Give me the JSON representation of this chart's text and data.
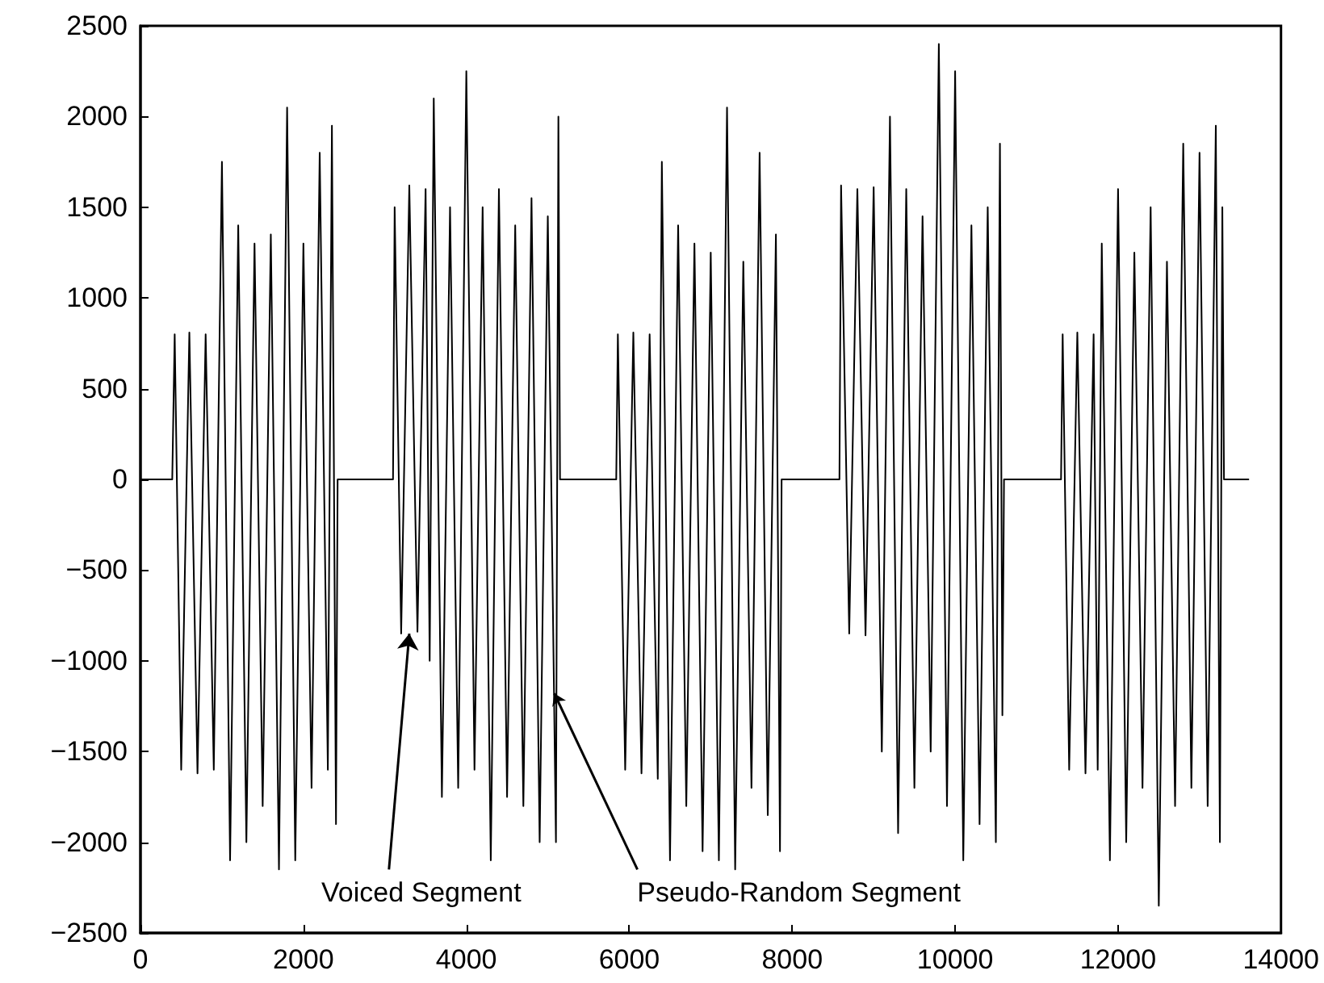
{
  "chart_data": {
    "type": "line",
    "marker": "none",
    "line_style": "solid",
    "grid": false,
    "x": [
      0,
      390,
      420,
      500,
      600,
      700,
      800,
      900,
      1000,
      1100,
      1200,
      1300,
      1400,
      1500,
      1600,
      1700,
      1800,
      1900,
      2000,
      2100,
      2200,
      2300,
      2350,
      2400,
      2420,
      3100,
      3120,
      3200,
      3300,
      3400,
      3500,
      3550,
      3600,
      3700,
      3800,
      3900,
      4000,
      4100,
      4200,
      4300,
      4400,
      4500,
      4600,
      4700,
      4800,
      4900,
      5000,
      5100,
      5130,
      5150,
      5840,
      5860,
      5950,
      6050,
      6150,
      6250,
      6350,
      6400,
      6500,
      6600,
      6700,
      6800,
      6900,
      7000,
      7100,
      7200,
      7300,
      7400,
      7500,
      7600,
      7700,
      7800,
      7850,
      7870,
      8580,
      8600,
      8700,
      8800,
      8900,
      9000,
      9100,
      9200,
      9300,
      9400,
      9500,
      9600,
      9700,
      9800,
      9900,
      10000,
      10100,
      10200,
      10300,
      10400,
      10500,
      10550,
      10580,
      10600,
      11300,
      11320,
      11400,
      11500,
      11600,
      11700,
      11750,
      11800,
      11900,
      12000,
      12100,
      12200,
      12300,
      12400,
      12500,
      12600,
      12700,
      12800,
      12900,
      13000,
      13100,
      13200,
      13250,
      13280,
      13300,
      13600
    ],
    "series": [
      {
        "color": "#000000",
        "values": [
          0,
          0,
          800,
          -1600,
          810,
          -1620,
          800,
          -1600,
          1750,
          -2100,
          1400,
          -2000,
          1300,
          -1800,
          1350,
          -2150,
          2050,
          -2100,
          1300,
          -1700,
          1800,
          -1600,
          1950,
          -1900,
          0,
          0,
          1500,
          -850,
          1620,
          -840,
          1600,
          -1000,
          2100,
          -1750,
          1500,
          -1700,
          2250,
          -1600,
          1500,
          -2100,
          1600,
          -1750,
          1400,
          -1800,
          1550,
          -2000,
          1450,
          -2000,
          2000,
          0,
          0,
          800,
          -1600,
          810,
          -1620,
          800,
          -1650,
          1750,
          -2100,
          1400,
          -1800,
          1300,
          -2050,
          1250,
          -2100,
          2050,
          -2150,
          1200,
          -1700,
          1800,
          -1850,
          1350,
          -2050,
          0,
          0,
          1620,
          -850,
          1600,
          -860,
          1610,
          -1500,
          2000,
          -1950,
          1600,
          -1700,
          1450,
          -1500,
          2400,
          -1800,
          2250,
          -2100,
          1400,
          -1900,
          1500,
          -2000,
          1850,
          -1300,
          0,
          0,
          800,
          -1600,
          810,
          -1620,
          800,
          -1600,
          1300,
          -2100,
          1600,
          -2000,
          1250,
          -1700,
          1500,
          -2350,
          1200,
          -1800,
          1850,
          -1700,
          1800,
          -1800,
          1950,
          -2000,
          1500,
          0,
          0
        ]
      }
    ],
    "xlim": [
      0,
      14000
    ],
    "xticks": [
      0,
      2000,
      4000,
      6000,
      8000,
      10000,
      12000,
      14000
    ],
    "ylim": [
      -2500,
      2500
    ],
    "yticks": [
      {
        "value": -2500,
        "label": "−2500"
      },
      {
        "value": -2000,
        "label": "−2000"
      },
      {
        "value": -1500,
        "label": "−1500"
      },
      {
        "value": -1000,
        "label": "−1000"
      },
      {
        "value": -500,
        "label": "−500"
      },
      0,
      500,
      1000,
      1500,
      2000,
      2500
    ],
    "annotations": [
      {
        "text": "Voiced Segment",
        "x": 3300,
        "y": -850
      },
      {
        "text": "Pseudo-Random Segment",
        "x": 5080,
        "y": -1180
      }
    ]
  }
}
